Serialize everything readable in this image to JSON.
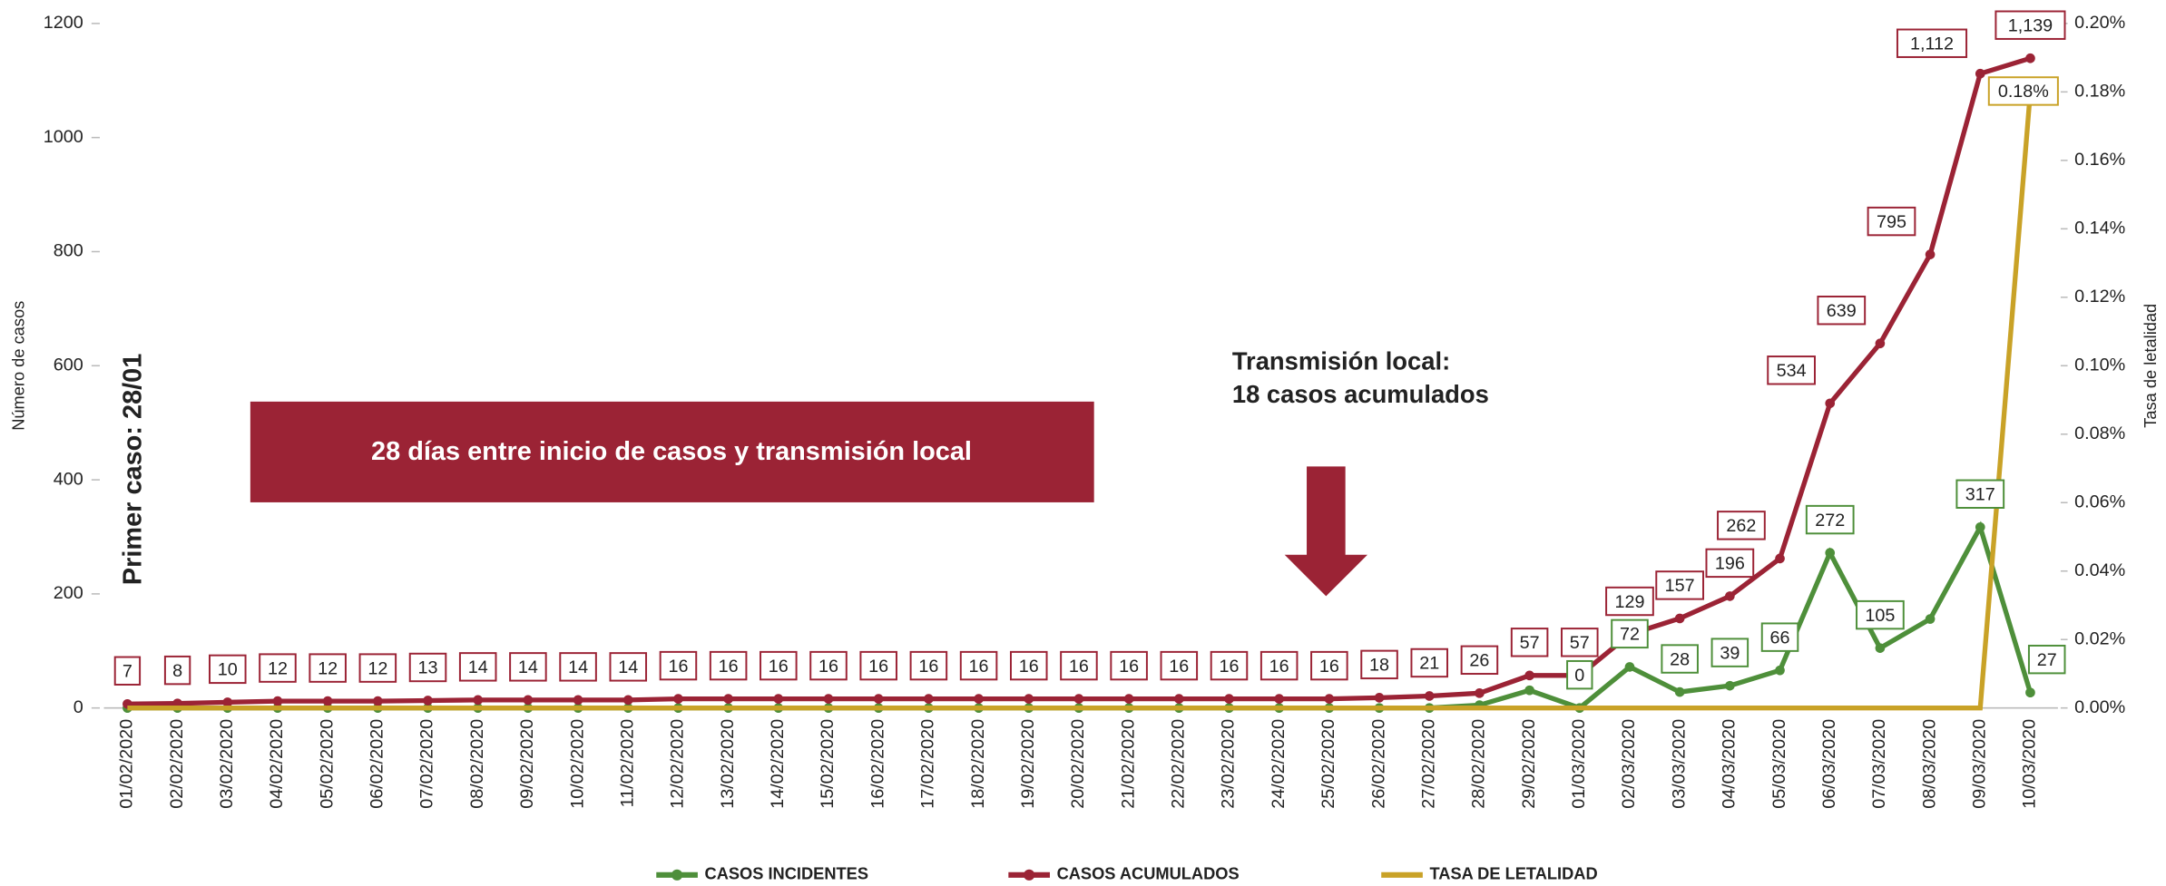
{
  "chart_data": {
    "type": "line",
    "categories": [
      "01/02/2020",
      "02/02/2020",
      "03/02/2020",
      "04/02/2020",
      "05/02/2020",
      "06/02/2020",
      "07/02/2020",
      "08/02/2020",
      "09/02/2020",
      "10/02/2020",
      "11/02/2020",
      "12/02/2020",
      "13/02/2020",
      "14/02/2020",
      "15/02/2020",
      "16/02/2020",
      "17/02/2020",
      "18/02/2020",
      "19/02/2020",
      "20/02/2020",
      "21/02/2020",
      "22/02/2020",
      "23/02/2020",
      "24/02/2020",
      "25/02/2020",
      "26/02/2020",
      "27/02/2020",
      "28/02/2020",
      "29/02/2020",
      "01/03/2020",
      "02/03/2020",
      "03/03/2020",
      "04/03/2020",
      "05/03/2020",
      "06/03/2020",
      "07/03/2020",
      "08/03/2020",
      "09/03/2020",
      "10/03/2020"
    ],
    "series": [
      {
        "name": "CASOS INCIDENTES",
        "color": "#4e8f3a",
        "values": [
          0,
          0,
          0,
          0,
          0,
          0,
          0,
          0,
          0,
          0,
          0,
          0,
          0,
          0,
          0,
          0,
          0,
          0,
          0,
          0,
          0,
          0,
          0,
          0,
          0,
          0,
          0,
          5,
          31,
          0,
          72,
          28,
          39,
          66,
          272,
          105,
          156,
          317,
          27
        ],
        "value_labels": [
          null,
          null,
          null,
          null,
          null,
          null,
          null,
          null,
          null,
          null,
          null,
          null,
          null,
          null,
          null,
          null,
          null,
          null,
          null,
          null,
          null,
          null,
          null,
          null,
          null,
          null,
          null,
          null,
          null,
          "0",
          "72",
          "28",
          "39",
          "66",
          "272",
          "105",
          null,
          "317",
          "27"
        ]
      },
      {
        "name": "CASOS ACUMULADOS",
        "color": "#9b2335",
        "values": [
          7,
          8,
          10,
          12,
          12,
          12,
          13,
          14,
          14,
          14,
          14,
          16,
          16,
          16,
          16,
          16,
          16,
          16,
          16,
          16,
          16,
          16,
          16,
          16,
          16,
          18,
          21,
          26,
          57,
          57,
          129,
          157,
          196,
          262,
          534,
          639,
          795,
          1112,
          1139
        ],
        "value_labels": [
          "7",
          "8",
          "10",
          "12",
          "12",
          "12",
          "13",
          "14",
          "14",
          "14",
          "14",
          "16",
          "16",
          "16",
          "16",
          "16",
          "16",
          "16",
          "16",
          "16",
          "16",
          "16",
          "16",
          "16",
          "16",
          "18",
          "21",
          "26",
          "57",
          "57",
          "129",
          "157",
          "196",
          "262",
          "534",
          "639",
          "795",
          "1,112",
          "1,139"
        ]
      },
      {
        "name": "TASA DE LETALIDAD",
        "color": "#c9a227",
        "axis": "y2",
        "values": [
          0,
          0,
          0,
          0,
          0,
          0,
          0,
          0,
          0,
          0,
          0,
          0,
          0,
          0,
          0,
          0,
          0,
          0,
          0,
          0,
          0,
          0,
          0,
          0,
          0,
          0,
          0,
          0,
          0,
          0,
          0,
          0,
          0,
          0,
          0,
          0,
          0,
          0,
          0.18
        ],
        "value_labels": [
          null,
          null,
          null,
          null,
          null,
          null,
          null,
          null,
          null,
          null,
          null,
          null,
          null,
          null,
          null,
          null,
          null,
          null,
          null,
          null,
          null,
          null,
          null,
          null,
          null,
          null,
          null,
          null,
          null,
          null,
          null,
          null,
          null,
          null,
          null,
          null,
          null,
          null,
          "0.18%"
        ]
      }
    ],
    "ylabel": "Número de casos",
    "y2label": "Tasa de letalidad",
    "ylim": [
      0,
      1200
    ],
    "yticks": [
      0,
      200,
      400,
      600,
      800,
      1000,
      1200
    ],
    "y2lim": [
      0,
      0.2
    ],
    "y2ticks": [
      {
        "value": 0,
        "label": "0.00%"
      },
      {
        "value": 0.02,
        "label": "0.02%"
      },
      {
        "value": 0.04,
        "label": "0.04%"
      },
      {
        "value": 0.06,
        "label": "0.06%"
      },
      {
        "value": 0.08,
        "label": "0.08%"
      },
      {
        "value": 0.1,
        "label": "0.10%"
      },
      {
        "value": 0.12,
        "label": "0.12%"
      },
      {
        "value": 0.14,
        "label": "0.14%"
      },
      {
        "value": 0.16,
        "label": "0.16%"
      },
      {
        "value": 0.18,
        "label": "0.18%"
      },
      {
        "value": 0.2,
        "label": "0.20%"
      }
    ],
    "annotations": [
      "28 días entre inicio de casos y transmisión local",
      "Transmisión local:",
      "18 casos acumulados",
      "Primer caso: 28/01"
    ],
    "legend": "bottom"
  }
}
